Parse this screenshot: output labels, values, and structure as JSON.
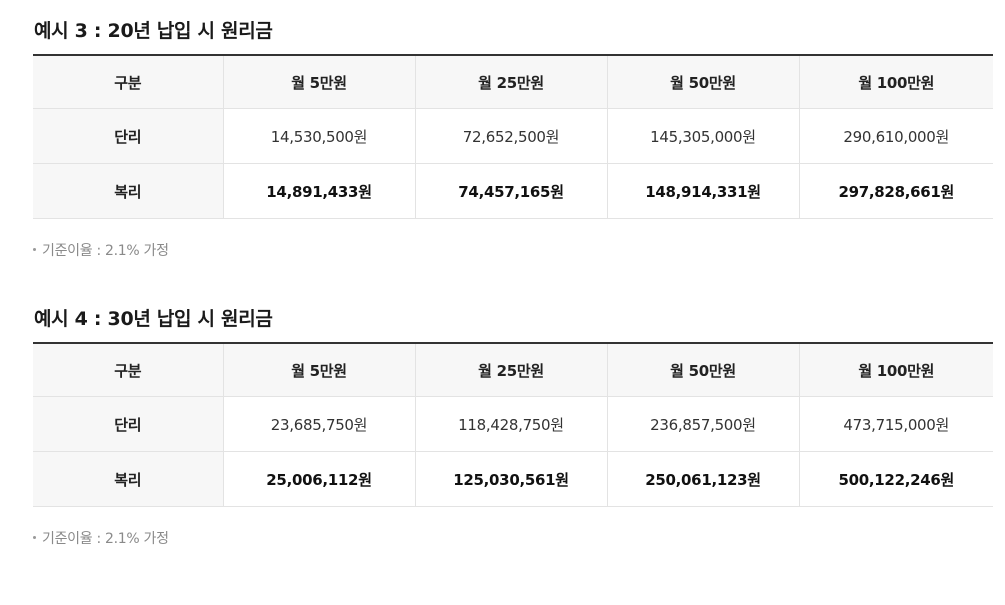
{
  "examples": [
    {
      "title": "예시 3 : 20년 납입 시 원리금",
      "headers": [
        "구분",
        "월 5만원",
        "월 25만원",
        "월 50만원",
        "월 100만원"
      ],
      "rows": [
        {
          "label": "단리",
          "values": [
            "14,530,500원",
            "72,652,500원",
            "145,305,000원",
            "290,610,000원"
          ]
        },
        {
          "label": "복리",
          "values": [
            "14,891,433원",
            "74,457,165원",
            "148,914,331원",
            "297,828,661원"
          ]
        }
      ],
      "note": "기준이율 : 2.1% 가정"
    },
    {
      "title": "예시 4 : 30년 납입 시 원리금",
      "headers": [
        "구분",
        "월 5만원",
        "월 25만원",
        "월 50만원",
        "월 100만원"
      ],
      "rows": [
        {
          "label": "단리",
          "values": [
            "23,685,750원",
            "118,428,750원",
            "236,857,500원",
            "473,715,000원"
          ]
        },
        {
          "label": "복리",
          "values": [
            "25,006,112원",
            "125,030,561원",
            "250,061,123원",
            "500,122,246원"
          ]
        }
      ],
      "note": "기준이율 : 2.1% 가정"
    }
  ]
}
